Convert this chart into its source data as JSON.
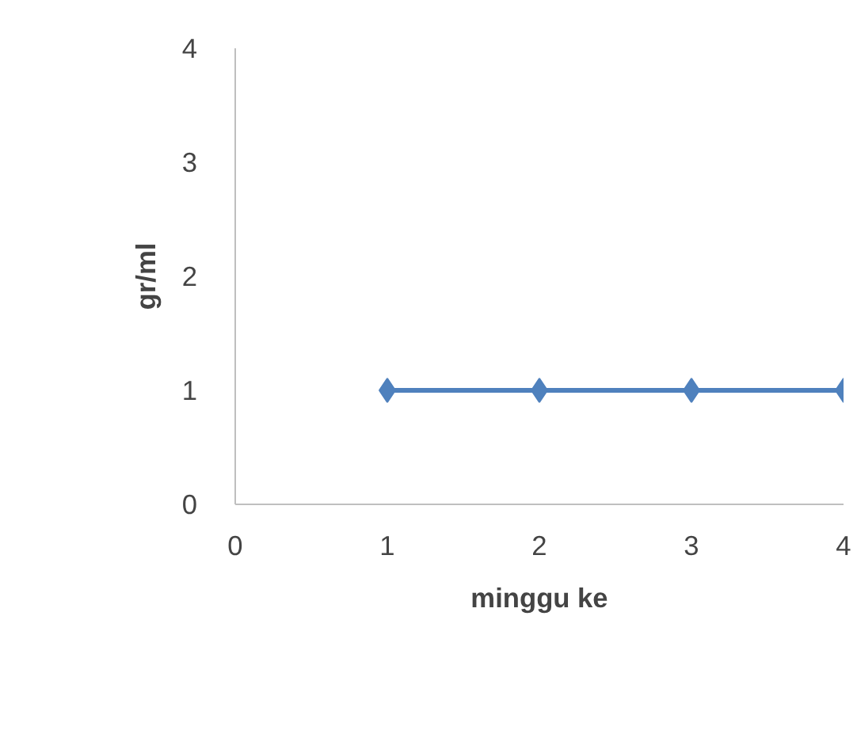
{
  "chart_data": {
    "type": "line",
    "xlabel": "minggu ke",
    "ylabel": "gr/ml",
    "x": [
      1,
      2,
      3,
      4
    ],
    "series": [
      {
        "color": "#4f81bd",
        "values": [
          1,
          1,
          1,
          1
        ]
      }
    ],
    "xlim": [
      0,
      4
    ],
    "ylim": [
      0,
      4
    ],
    "xticks": [
      0,
      1,
      2,
      3,
      4
    ],
    "yticks": [
      0,
      1,
      2,
      3,
      4
    ],
    "grid": false,
    "marker": "diamond",
    "line_style": "solid"
  }
}
